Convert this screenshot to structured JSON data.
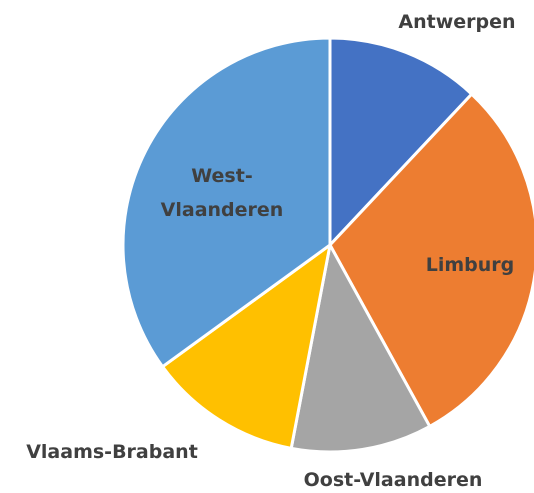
{
  "chart_data": {
    "type": "pie",
    "categories": [
      "Antwerpen",
      "Limburg",
      "Oost-Vlaanderen",
      "Vlaams-Brabant",
      "West-Vlaanderen"
    ],
    "values": [
      12,
      30,
      11,
      12,
      35
    ],
    "colors": [
      "#4472c4",
      "#ed7d31",
      "#a5a5a5",
      "#ffc000",
      "#5b9bd5"
    ]
  }
}
